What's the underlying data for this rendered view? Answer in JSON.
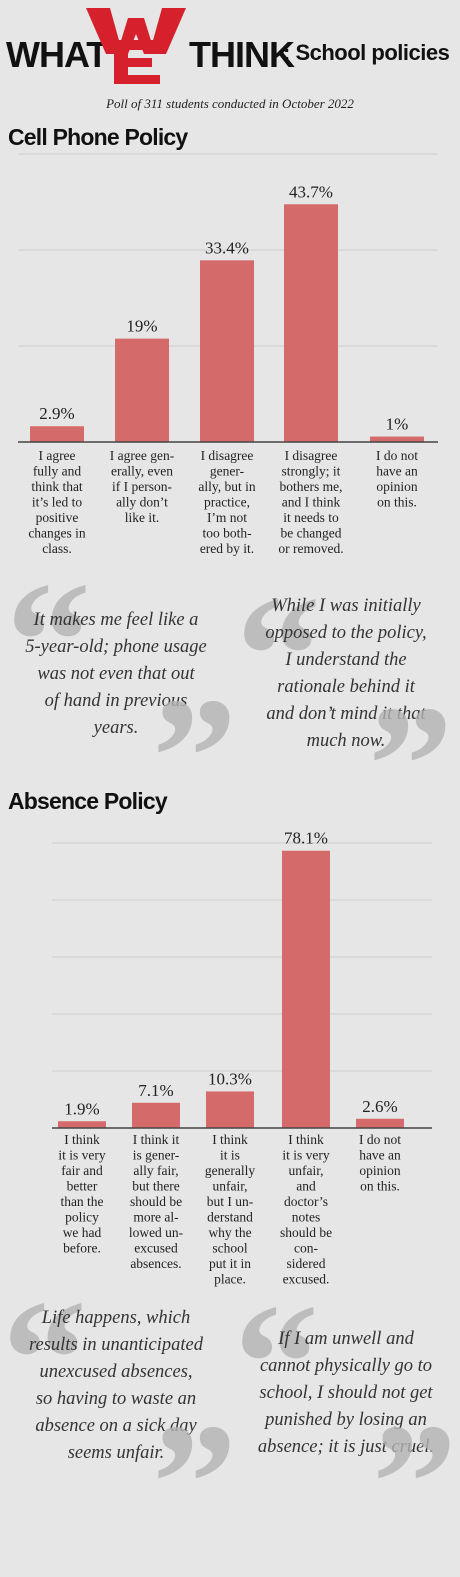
{
  "header": {
    "word_left": "WHAT",
    "word_right": "THINK",
    "subtitle": ": School policies",
    "logo_letters": "WE",
    "logo_color": "#d6202c",
    "poll": "Poll of 311 students conducted in October 2022"
  },
  "colors": {
    "bar": "#d46a6a",
    "grid": "#cfcfcf",
    "axis": "#444444"
  },
  "icons": {
    "quote_open": "left-double-quote-icon",
    "quote_close": "right-double-quote-icon"
  },
  "chart_data": [
    {
      "type": "bar",
      "title": "Cell Phone Policy",
      "value_suffix": "%",
      "ylim": [
        0,
        50
      ],
      "grid": true,
      "categories": [
        [
          "I agree",
          "fully and",
          "think that",
          "it’s led to",
          "positive",
          "changes in",
          "class."
        ],
        [
          "I agree gen-",
          "erally, even",
          "if I person-",
          "ally don’t",
          "like it."
        ],
        [
          "I disagree",
          "gener-",
          "ally, but in",
          "practice,",
          "I’m not",
          "too both-",
          "ered by it."
        ],
        [
          "I disagree",
          "strongly; it",
          "bothers me,",
          "and I think",
          "it needs to",
          "be changed",
          "or removed."
        ],
        [
          "I do not",
          "have an",
          "opinion",
          "on this."
        ]
      ],
      "values": [
        2.9,
        19,
        33.4,
        43.7,
        1
      ]
    },
    {
      "type": "bar",
      "title": "Absence Policy",
      "value_suffix": "%",
      "ylim": [
        0,
        80
      ],
      "grid": true,
      "categories": [
        [
          "I think",
          "it is very",
          "fair and",
          "better",
          "than the",
          "policy",
          "we had",
          "before."
        ],
        [
          "I think it",
          "is gener-",
          "ally fair,",
          "but there",
          "should be",
          "more al-",
          "lowed un-",
          "excused",
          "absences."
        ],
        [
          "I think",
          "it is",
          "generally",
          "unfair,",
          "but I un-",
          "derstand",
          "why the",
          "school",
          "put it in",
          "place."
        ],
        [
          "I think",
          "it is very",
          "unfair,",
          "and",
          "doctor’s",
          "notes",
          "should be",
          "con-",
          "sidered",
          "excused."
        ],
        [
          "I do not",
          "have an",
          "opinion",
          "on this."
        ]
      ],
      "values": [
        1.9,
        7.1,
        10.3,
        78.1,
        2.6
      ]
    }
  ],
  "quotes": {
    "phone_left": [
      "It makes me feel like a",
      "5-year-old; phone usage",
      "was not even that out",
      "of hand in previous",
      "years."
    ],
    "phone_right": [
      "While I was initially",
      "opposed to the policy,",
      "I understand the",
      "rationale behind it",
      "and don’t mind it that",
      "much now."
    ],
    "absence_left": [
      "Life happens, which",
      "results in unanticipated",
      "unexcused absences,",
      "so having to waste an",
      "absence on a sick day",
      "seems unfair."
    ],
    "absence_right": [
      "If I am unwell and",
      "cannot physically go to",
      "school, I should not get",
      "punished by losing an",
      "absence; it is just cruel."
    ]
  }
}
